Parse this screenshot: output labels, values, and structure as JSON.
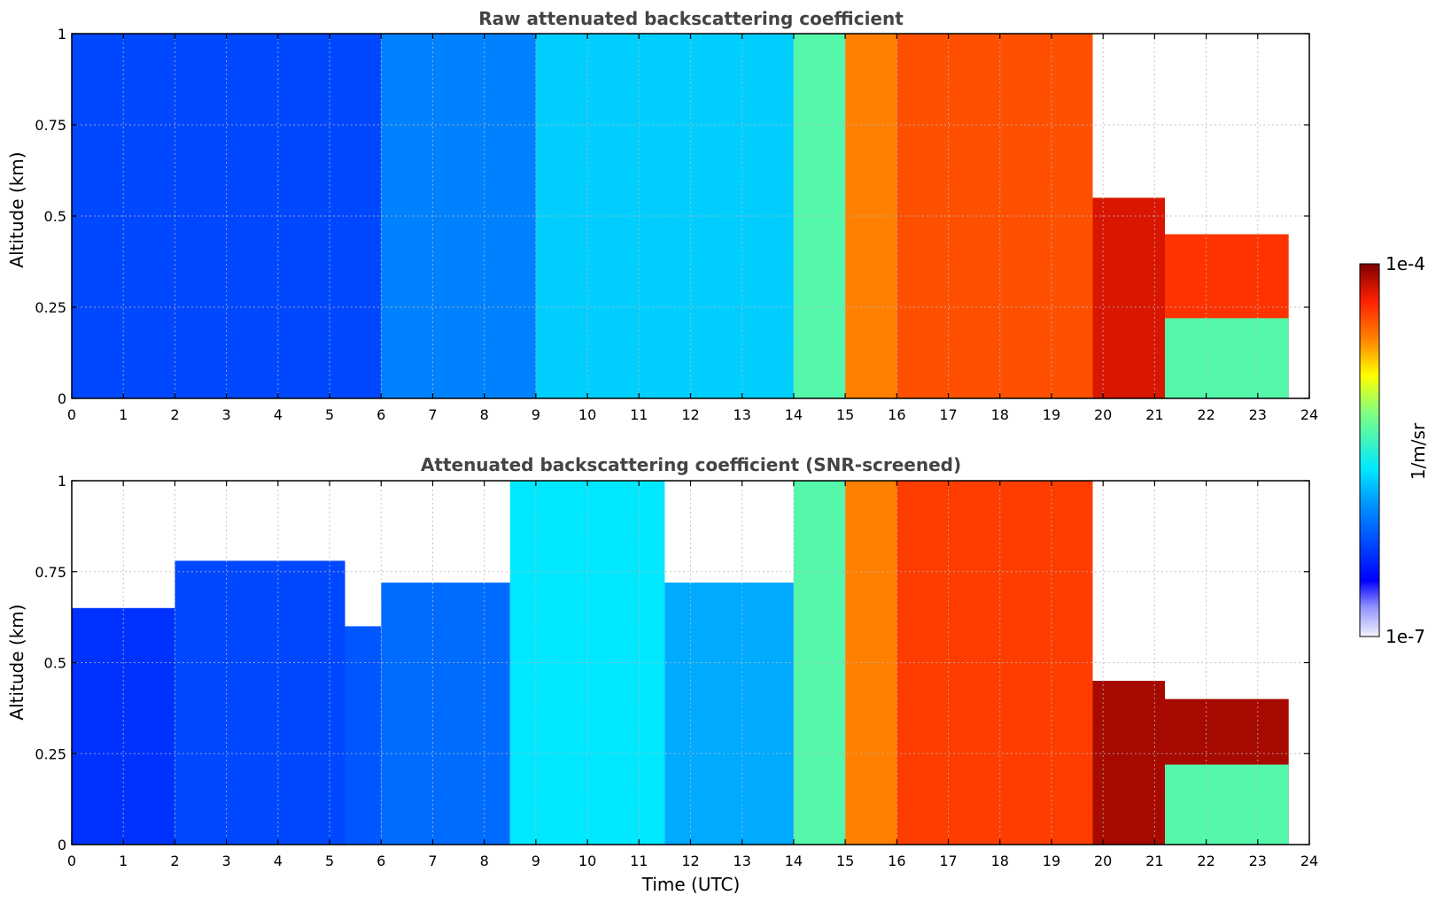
{
  "chart_data": [
    {
      "type": "heatmap",
      "title": "Raw attenuated backscattering coefficient",
      "xlabel": "",
      "ylabel": "Altitude (km)",
      "xlim": [
        0,
        24
      ],
      "ylim": [
        0,
        1
      ],
      "x_ticks": [
        "0",
        "1",
        "2",
        "3",
        "4",
        "5",
        "6",
        "7",
        "8",
        "9",
        "10",
        "11",
        "12",
        "13",
        "14",
        "15",
        "16",
        "17",
        "18",
        "19",
        "20",
        "21",
        "22",
        "23",
        "24"
      ],
      "y_ticks": [
        "0",
        "0.25",
        "0.5",
        "0.75",
        "1"
      ],
      "grid": true,
      "color_scale": "log",
      "regions": [
        {
          "t_start": 0,
          "t_end": 6,
          "alt_top": 1.0,
          "level": 0.25
        },
        {
          "t_start": 6,
          "t_end": 9,
          "alt_top": 1.0,
          "level": 0.33
        },
        {
          "t_start": 9,
          "t_end": 14,
          "alt_top": 1.0,
          "level": 0.42
        },
        {
          "t_start": 14,
          "t_end": 15,
          "alt_top": 1.0,
          "level": 0.55
        },
        {
          "t_start": 15,
          "t_end": 16,
          "alt_top": 1.0,
          "level": 0.8
        },
        {
          "t_start": 16,
          "t_end": 19.8,
          "alt_top": 1.0,
          "level": 0.85
        },
        {
          "t_start": 19.8,
          "t_end": 21.2,
          "alt_top": 0.55,
          "level": 0.93
        },
        {
          "t_start": 21.2,
          "t_end": 23.6,
          "alt_top": 0.45,
          "level": 0.88
        },
        {
          "t_start": 21.2,
          "t_end": 23.6,
          "alt_top": 0.22,
          "level": 0.55
        }
      ]
    },
    {
      "type": "heatmap",
      "title": "Attenuated backscattering coefficient (SNR-screened)",
      "xlabel": "Time (UTC)",
      "ylabel": "Altitude (km)",
      "xlim": [
        0,
        24
      ],
      "ylim": [
        0,
        1
      ],
      "x_ticks": [
        "0",
        "1",
        "2",
        "3",
        "4",
        "5",
        "6",
        "7",
        "8",
        "9",
        "10",
        "11",
        "12",
        "13",
        "14",
        "15",
        "16",
        "17",
        "18",
        "19",
        "20",
        "21",
        "22",
        "23",
        "24"
      ],
      "y_ticks": [
        "0",
        "0.25",
        "0.5",
        "0.75",
        "1"
      ],
      "grid": true,
      "color_scale": "log",
      "regions": [
        {
          "t_start": 0,
          "t_end": 2,
          "alt_top": 0.65,
          "level": 0.22
        },
        {
          "t_start": 2,
          "t_end": 5.3,
          "alt_top": 0.78,
          "level": 0.25
        },
        {
          "t_start": 5.3,
          "t_end": 6,
          "alt_top": 0.6,
          "level": 0.27
        },
        {
          "t_start": 6,
          "t_end": 8.5,
          "alt_top": 0.72,
          "level": 0.3
        },
        {
          "t_start": 8.5,
          "t_end": 11.5,
          "alt_top": 1.0,
          "level": 0.45
        },
        {
          "t_start": 11.5,
          "t_end": 14,
          "alt_top": 0.72,
          "level": 0.38
        },
        {
          "t_start": 14,
          "t_end": 15,
          "alt_top": 1.0,
          "level": 0.55
        },
        {
          "t_start": 15,
          "t_end": 16,
          "alt_top": 1.0,
          "level": 0.8
        },
        {
          "t_start": 16,
          "t_end": 19.8,
          "alt_top": 1.0,
          "level": 0.87
        },
        {
          "t_start": 19.8,
          "t_end": 21.2,
          "alt_top": 0.45,
          "level": 0.97
        },
        {
          "t_start": 21.2,
          "t_end": 23.6,
          "alt_top": 0.4,
          "level": 0.97
        },
        {
          "t_start": 21.2,
          "t_end": 23.6,
          "alt_top": 0.22,
          "level": 0.55
        }
      ]
    }
  ],
  "colorbar": {
    "max_label": "1e-4",
    "min_label": "1e-7",
    "unit_label": "1/m/sr"
  }
}
